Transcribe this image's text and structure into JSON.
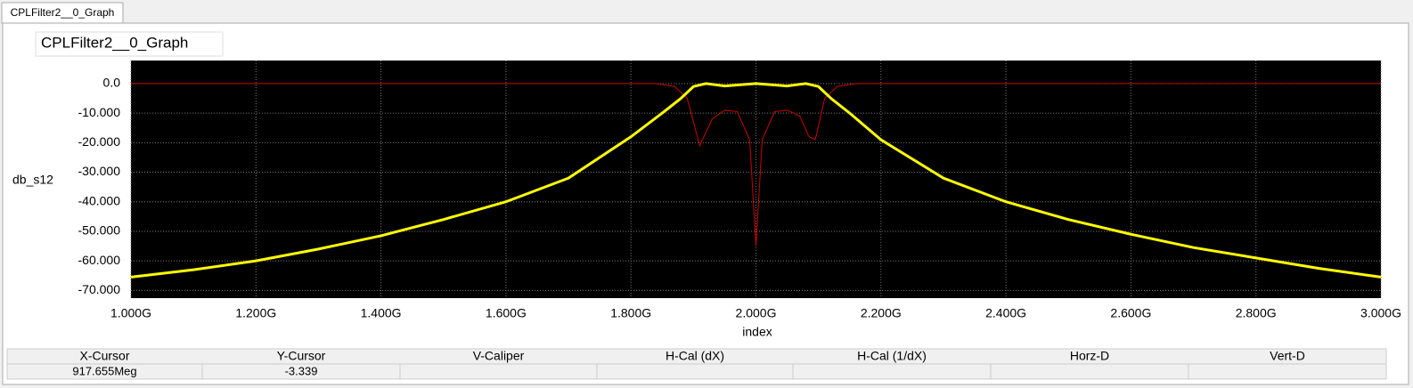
{
  "tab_title": "CPLFilter2__0_Graph",
  "chart_data": {
    "type": "line",
    "title": "CPLFilter2__0_Graph",
    "x_label": "index",
    "y_label": "db_s12",
    "xlim": [
      1000000000,
      3000000000
    ],
    "ylim": [
      -72.6,
      7.8
    ],
    "xticks": [
      {
        "value": 1000000000,
        "label": "1.000G"
      },
      {
        "value": 1200000000,
        "label": "1.200G"
      },
      {
        "value": 1400000000,
        "label": "1.400G"
      },
      {
        "value": 1600000000,
        "label": "1.600G"
      },
      {
        "value": 1800000000,
        "label": "1.800G"
      },
      {
        "value": 2000000000,
        "label": "2.000G"
      },
      {
        "value": 2200000000,
        "label": "2.200G"
      },
      {
        "value": 2400000000,
        "label": "2.400G"
      },
      {
        "value": 2600000000,
        "label": "2.600G"
      },
      {
        "value": 2800000000,
        "label": "2.800G"
      },
      {
        "value": 3000000000,
        "label": "3.000G"
      }
    ],
    "yticks": [
      {
        "value": 0,
        "label": "0.0"
      },
      {
        "value": -10,
        "label": "-10.000"
      },
      {
        "value": -20,
        "label": "-20.000"
      },
      {
        "value": -30,
        "label": "-30.000"
      },
      {
        "value": -40,
        "label": "-40.000"
      },
      {
        "value": -50,
        "label": "-50.000"
      },
      {
        "value": -60,
        "label": "-60.000"
      },
      {
        "value": -70,
        "label": "-70.000"
      }
    ],
    "grid": true,
    "series": [
      {
        "color": "#cc0000",
        "width": 1,
        "x": [
          1000000000,
          1500000000,
          1840000000,
          1870000000,
          1890000000,
          1910000000,
          1930000000,
          1950000000,
          1970000000,
          1990000000,
          2000000000,
          2010000000,
          2030000000,
          2050000000,
          2070000000,
          2085000000,
          2095000000,
          2110000000,
          2130000000,
          2160000000,
          2500000000,
          3000000000
        ],
        "values": [
          0,
          0,
          0,
          -1,
          -5,
          -21,
          -12,
          -9,
          -9.5,
          -19,
          -55,
          -19,
          -9.5,
          -9,
          -11,
          -18,
          -19,
          -5,
          -1,
          0,
          0,
          0
        ]
      },
      {
        "color": "#ffff00",
        "width": 3,
        "x": [
          1000000000,
          1100000000,
          1200000000,
          1300000000,
          1400000000,
          1500000000,
          1600000000,
          1700000000,
          1800000000,
          1850000000,
          1880000000,
          1900000000,
          1920000000,
          1950000000,
          2000000000,
          2050000000,
          2080000000,
          2100000000,
          2120000000,
          2150000000,
          2200000000,
          2300000000,
          2400000000,
          2500000000,
          2600000000,
          2700000000,
          2800000000,
          2900000000,
          3000000000
        ],
        "values": [
          -65.5,
          -63,
          -60,
          -56,
          -51.5,
          -46,
          -40,
          -32,
          -18,
          -10,
          -5,
          -1,
          0,
          -0.8,
          0,
          -0.8,
          0,
          -1,
          -5,
          -10,
          -19,
          -32,
          -40,
          -46,
          -51,
          -55.5,
          -59,
          -62.5,
          -65.5
        ]
      }
    ]
  },
  "cursor_table": {
    "headers": [
      "X-Cursor",
      "Y-Cursor",
      "V-Caliper",
      "H-Cal (dX)",
      "H-Cal (1/dX)",
      "Horz-D",
      "Vert-D"
    ],
    "values": [
      "917.655Meg",
      "-3.339"
    ]
  }
}
